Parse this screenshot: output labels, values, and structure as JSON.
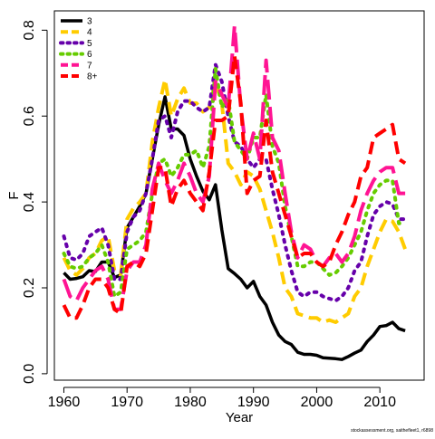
{
  "chart_data": {
    "type": "line",
    "title": "",
    "xlabel": "Year",
    "ylabel": "F",
    "xlim": [
      1958.5,
      2017
    ],
    "ylim": [
      -0.015,
      0.845
    ],
    "x_ticks": [
      "1960",
      "1970",
      "1980",
      "1990",
      "2000",
      "2010"
    ],
    "y_ticks": [
      "0.0",
      "0.2",
      "0.4",
      "0.6",
      "0.8"
    ],
    "grid": false,
    "legend_position": "top-left",
    "source_note": "stockassessment.org, saithefleet1, r6898",
    "x": [
      1960,
      1961,
      1962,
      1963,
      1964,
      1965,
      1966,
      1967,
      1968,
      1969,
      1970,
      1971,
      1972,
      1973,
      1974,
      1975,
      1976,
      1977,
      1978,
      1979,
      1980,
      1981,
      1982,
      1983,
      1984,
      1985,
      1986,
      1987,
      1988,
      1989,
      1990,
      1991,
      1992,
      1993,
      1994,
      1995,
      1996,
      1997,
      1998,
      1999,
      2000,
      2001,
      2002,
      2003,
      2004,
      2005,
      2006,
      2007,
      2008,
      2009,
      2010,
      2011,
      2012,
      2013,
      2014
    ],
    "series": [
      {
        "name": "3",
        "color": "#000000",
        "dash": "solid",
        "width": 3.5,
        "values": [
          0.235,
          0.22,
          0.222,
          0.226,
          0.24,
          0.238,
          0.26,
          0.26,
          0.224,
          0.23,
          0.34,
          0.365,
          0.39,
          0.42,
          0.5,
          0.58,
          0.645,
          0.57,
          0.57,
          0.555,
          0.5,
          0.46,
          0.425,
          0.405,
          0.44,
          0.335,
          0.245,
          0.233,
          0.22,
          0.2,
          0.215,
          0.18,
          0.16,
          0.12,
          0.09,
          0.075,
          0.068,
          0.05,
          0.045,
          0.045,
          0.043,
          0.037,
          0.036,
          0.035,
          0.033,
          0.04,
          0.048,
          0.055,
          0.075,
          0.09,
          0.11,
          0.112,
          0.12,
          0.105,
          0.1
        ]
      },
      {
        "name": "4",
        "color": "#FFCC00",
        "dash": "dash",
        "width": 4,
        "values": [
          0.27,
          0.24,
          0.23,
          0.245,
          0.27,
          0.28,
          0.31,
          0.32,
          0.24,
          0.23,
          0.36,
          0.385,
          0.4,
          0.42,
          0.54,
          0.62,
          0.685,
          0.6,
          0.64,
          0.665,
          0.63,
          0.63,
          0.61,
          0.62,
          0.68,
          0.63,
          0.49,
          0.47,
          0.44,
          0.47,
          0.46,
          0.43,
          0.38,
          0.33,
          0.27,
          0.2,
          0.18,
          0.14,
          0.135,
          0.13,
          0.13,
          0.12,
          0.125,
          0.12,
          0.13,
          0.14,
          0.18,
          0.2,
          0.25,
          0.29,
          0.33,
          0.36,
          0.355,
          0.33,
          0.29
        ]
      },
      {
        "name": "5",
        "color": "#6600AA",
        "dash": "dot",
        "width": 4,
        "values": [
          0.32,
          0.27,
          0.265,
          0.28,
          0.32,
          0.33,
          0.34,
          0.3,
          0.22,
          0.22,
          0.33,
          0.365,
          0.38,
          0.42,
          0.5,
          0.59,
          0.6,
          0.55,
          0.61,
          0.635,
          0.635,
          0.62,
          0.61,
          0.62,
          0.72,
          0.68,
          0.6,
          0.54,
          0.53,
          0.5,
          0.48,
          0.5,
          0.5,
          0.43,
          0.37,
          0.3,
          0.24,
          0.19,
          0.18,
          0.19,
          0.19,
          0.18,
          0.175,
          0.17,
          0.18,
          0.2,
          0.24,
          0.26,
          0.32,
          0.37,
          0.39,
          0.4,
          0.395,
          0.36,
          0.36
        ]
      },
      {
        "name": "6",
        "color": "#66CC00",
        "dash": "dot",
        "width": 4,
        "values": [
          0.28,
          0.25,
          0.245,
          0.25,
          0.27,
          0.28,
          0.3,
          0.26,
          0.18,
          0.19,
          0.29,
          0.3,
          0.31,
          0.33,
          0.42,
          0.49,
          0.5,
          0.46,
          0.48,
          0.51,
          0.51,
          0.52,
          0.48,
          0.53,
          0.71,
          0.62,
          0.64,
          0.54,
          0.52,
          0.5,
          0.55,
          0.55,
          0.65,
          0.53,
          0.49,
          0.39,
          0.32,
          0.25,
          0.25,
          0.26,
          0.26,
          0.245,
          0.23,
          0.235,
          0.25,
          0.27,
          0.3,
          0.33,
          0.38,
          0.42,
          0.44,
          0.45,
          0.45,
          0.35,
          0.35
        ]
      },
      {
        "name": "7",
        "color": "#FF1493",
        "dash": "longdash",
        "width": 4,
        "values": [
          0.22,
          0.18,
          0.17,
          0.2,
          0.22,
          0.24,
          0.25,
          0.22,
          0.15,
          0.15,
          0.24,
          0.26,
          0.26,
          0.3,
          0.43,
          0.49,
          0.45,
          0.42,
          0.45,
          0.49,
          0.46,
          0.42,
          0.4,
          0.46,
          0.68,
          0.65,
          0.62,
          0.81,
          0.62,
          0.5,
          0.56,
          0.5,
          0.73,
          0.55,
          0.52,
          0.42,
          0.33,
          0.27,
          0.3,
          0.29,
          0.26,
          0.25,
          0.27,
          0.28,
          0.26,
          0.28,
          0.32,
          0.38,
          0.42,
          0.45,
          0.47,
          0.48,
          0.48,
          0.42,
          0.42
        ]
      },
      {
        "name": "8+",
        "color": "#FF0000",
        "dash": "dash",
        "width": 4,
        "values": [
          0.16,
          0.13,
          0.13,
          0.16,
          0.2,
          0.22,
          0.22,
          0.2,
          0.15,
          0.14,
          0.25,
          0.26,
          0.25,
          0.28,
          0.38,
          0.48,
          0.48,
          0.39,
          0.43,
          0.45,
          0.42,
          0.4,
          0.38,
          0.47,
          0.59,
          0.59,
          0.6,
          0.74,
          0.63,
          0.42,
          0.45,
          0.46,
          0.59,
          0.47,
          0.42,
          0.37,
          0.32,
          0.27,
          0.28,
          0.28,
          0.26,
          0.25,
          0.26,
          0.3,
          0.33,
          0.37,
          0.4,
          0.46,
          0.48,
          0.55,
          0.56,
          0.57,
          0.58,
          0.5,
          0.49
        ]
      }
    ]
  }
}
